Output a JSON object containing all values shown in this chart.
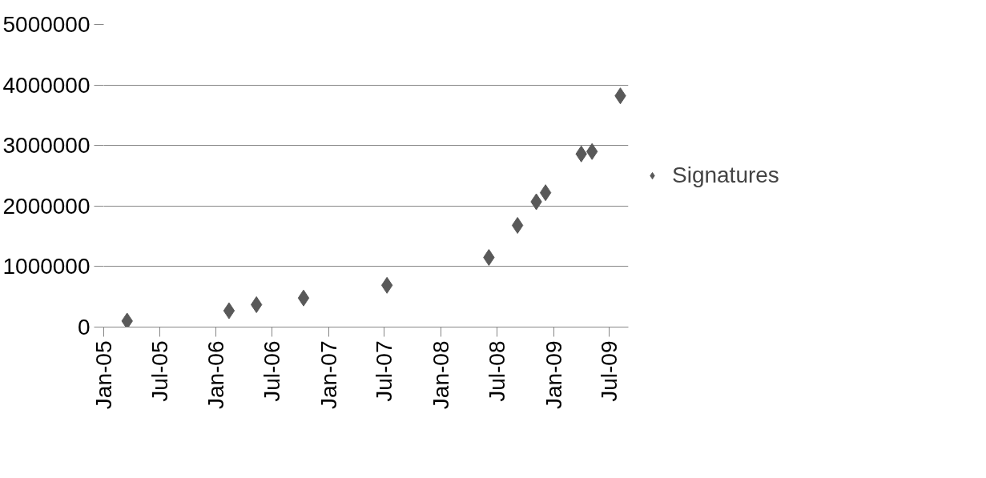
{
  "chart_data": {
    "type": "scatter",
    "x": [
      "2005-03-18",
      "2006-02-12",
      "2006-05-12",
      "2006-10-12",
      "2007-07-10",
      "2008-06-05",
      "2008-09-06",
      "2008-11-06",
      "2008-12-06",
      "2009-04-01",
      "2009-05-06",
      "2009-08-06"
    ],
    "series": [
      {
        "name": "Signatures",
        "color": "#595959",
        "values": [
          100000,
          270000,
          370000,
          480000,
          690000,
          1150000,
          1680000,
          2070000,
          2220000,
          2860000,
          2900000,
          3820000
        ]
      }
    ],
    "xlim": [
      "2005-01-01",
      "2009-09-01"
    ],
    "xticks": [
      {
        "value": "2005-01-01",
        "label": "Jan-05"
      },
      {
        "value": "2005-07-01",
        "label": "Jul-05"
      },
      {
        "value": "2006-01-01",
        "label": "Jan-06"
      },
      {
        "value": "2006-07-01",
        "label": "Jul-06"
      },
      {
        "value": "2007-01-01",
        "label": "Jan-07"
      },
      {
        "value": "2007-07-01",
        "label": "Jul-07"
      },
      {
        "value": "2008-01-01",
        "label": "Jan-08"
      },
      {
        "value": "2008-07-01",
        "label": "Jul-08"
      },
      {
        "value": "2009-01-01",
        "label": "Jan-09"
      },
      {
        "value": "2009-07-01",
        "label": "Jul-09"
      }
    ],
    "ylim": [
      0,
      5000000
    ],
    "yticks": [
      0,
      1000000,
      2000000,
      3000000,
      4000000,
      5000000
    ],
    "grid": "y",
    "legend": "right",
    "marker": "diamond"
  }
}
